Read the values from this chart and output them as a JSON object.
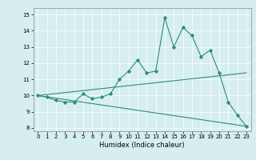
{
  "title": "",
  "xlabel": "Humidex (Indice chaleur)",
  "bg_color": "#d6eef0",
  "line_color": "#2e8b7a",
  "xlim": [
    -0.5,
    23.5
  ],
  "ylim": [
    7.8,
    15.4
  ],
  "xticks": [
    0,
    1,
    2,
    3,
    4,
    5,
    6,
    7,
    8,
    9,
    10,
    11,
    12,
    13,
    14,
    15,
    16,
    17,
    18,
    19,
    20,
    21,
    22,
    23
  ],
  "yticks": [
    8,
    9,
    10,
    11,
    12,
    13,
    14,
    15
  ],
  "line1_x": [
    0,
    1,
    2,
    3,
    4,
    5,
    6,
    7,
    8,
    9,
    10,
    11,
    12,
    13,
    14,
    15,
    16,
    17,
    18,
    19,
    20,
    21,
    22,
    23
  ],
  "line1_y": [
    10.0,
    9.9,
    9.7,
    9.6,
    9.6,
    10.1,
    9.8,
    9.9,
    10.1,
    11.0,
    11.5,
    12.2,
    11.4,
    11.5,
    14.8,
    13.0,
    14.2,
    13.7,
    12.4,
    12.8,
    11.4,
    9.6,
    8.8,
    8.1
  ],
  "line2_x": [
    0,
    23
  ],
  "line2_y": [
    10.0,
    11.4
  ],
  "line3_x": [
    0,
    23
  ],
  "line3_y": [
    10.0,
    8.1
  ],
  "marker": "D",
  "markersize": 2.2,
  "linewidth": 0.8,
  "tick_fontsize": 5.0,
  "xlabel_fontsize": 6.0
}
